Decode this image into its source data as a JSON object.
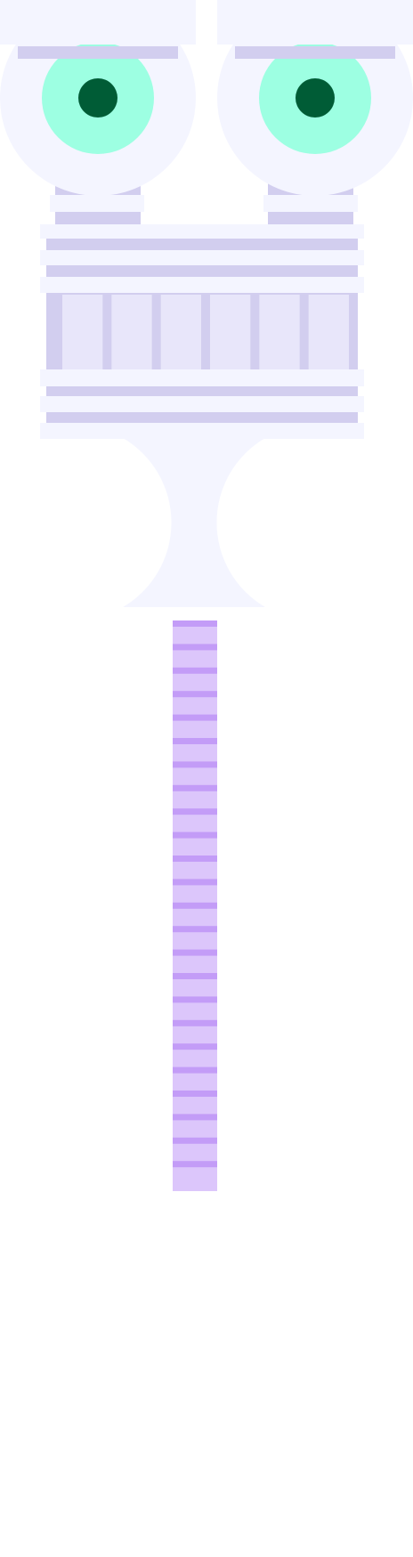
{
  "colors": {
    "background": "#ffffff",
    "panel": "#f4f5ff",
    "lavender": "#d2ceef",
    "tile": "#e8e6fa",
    "mint": "#9dffe2",
    "dark_green": "#005c36",
    "neck_light": "#dcc6fb",
    "neck_stripe": "#c39cf7"
  },
  "figure": {
    "eyes": [
      {
        "label": "left-eye"
      },
      {
        "label": "right-eye"
      }
    ],
    "teeth_count": 6,
    "neck_stripe_count": 24
  }
}
